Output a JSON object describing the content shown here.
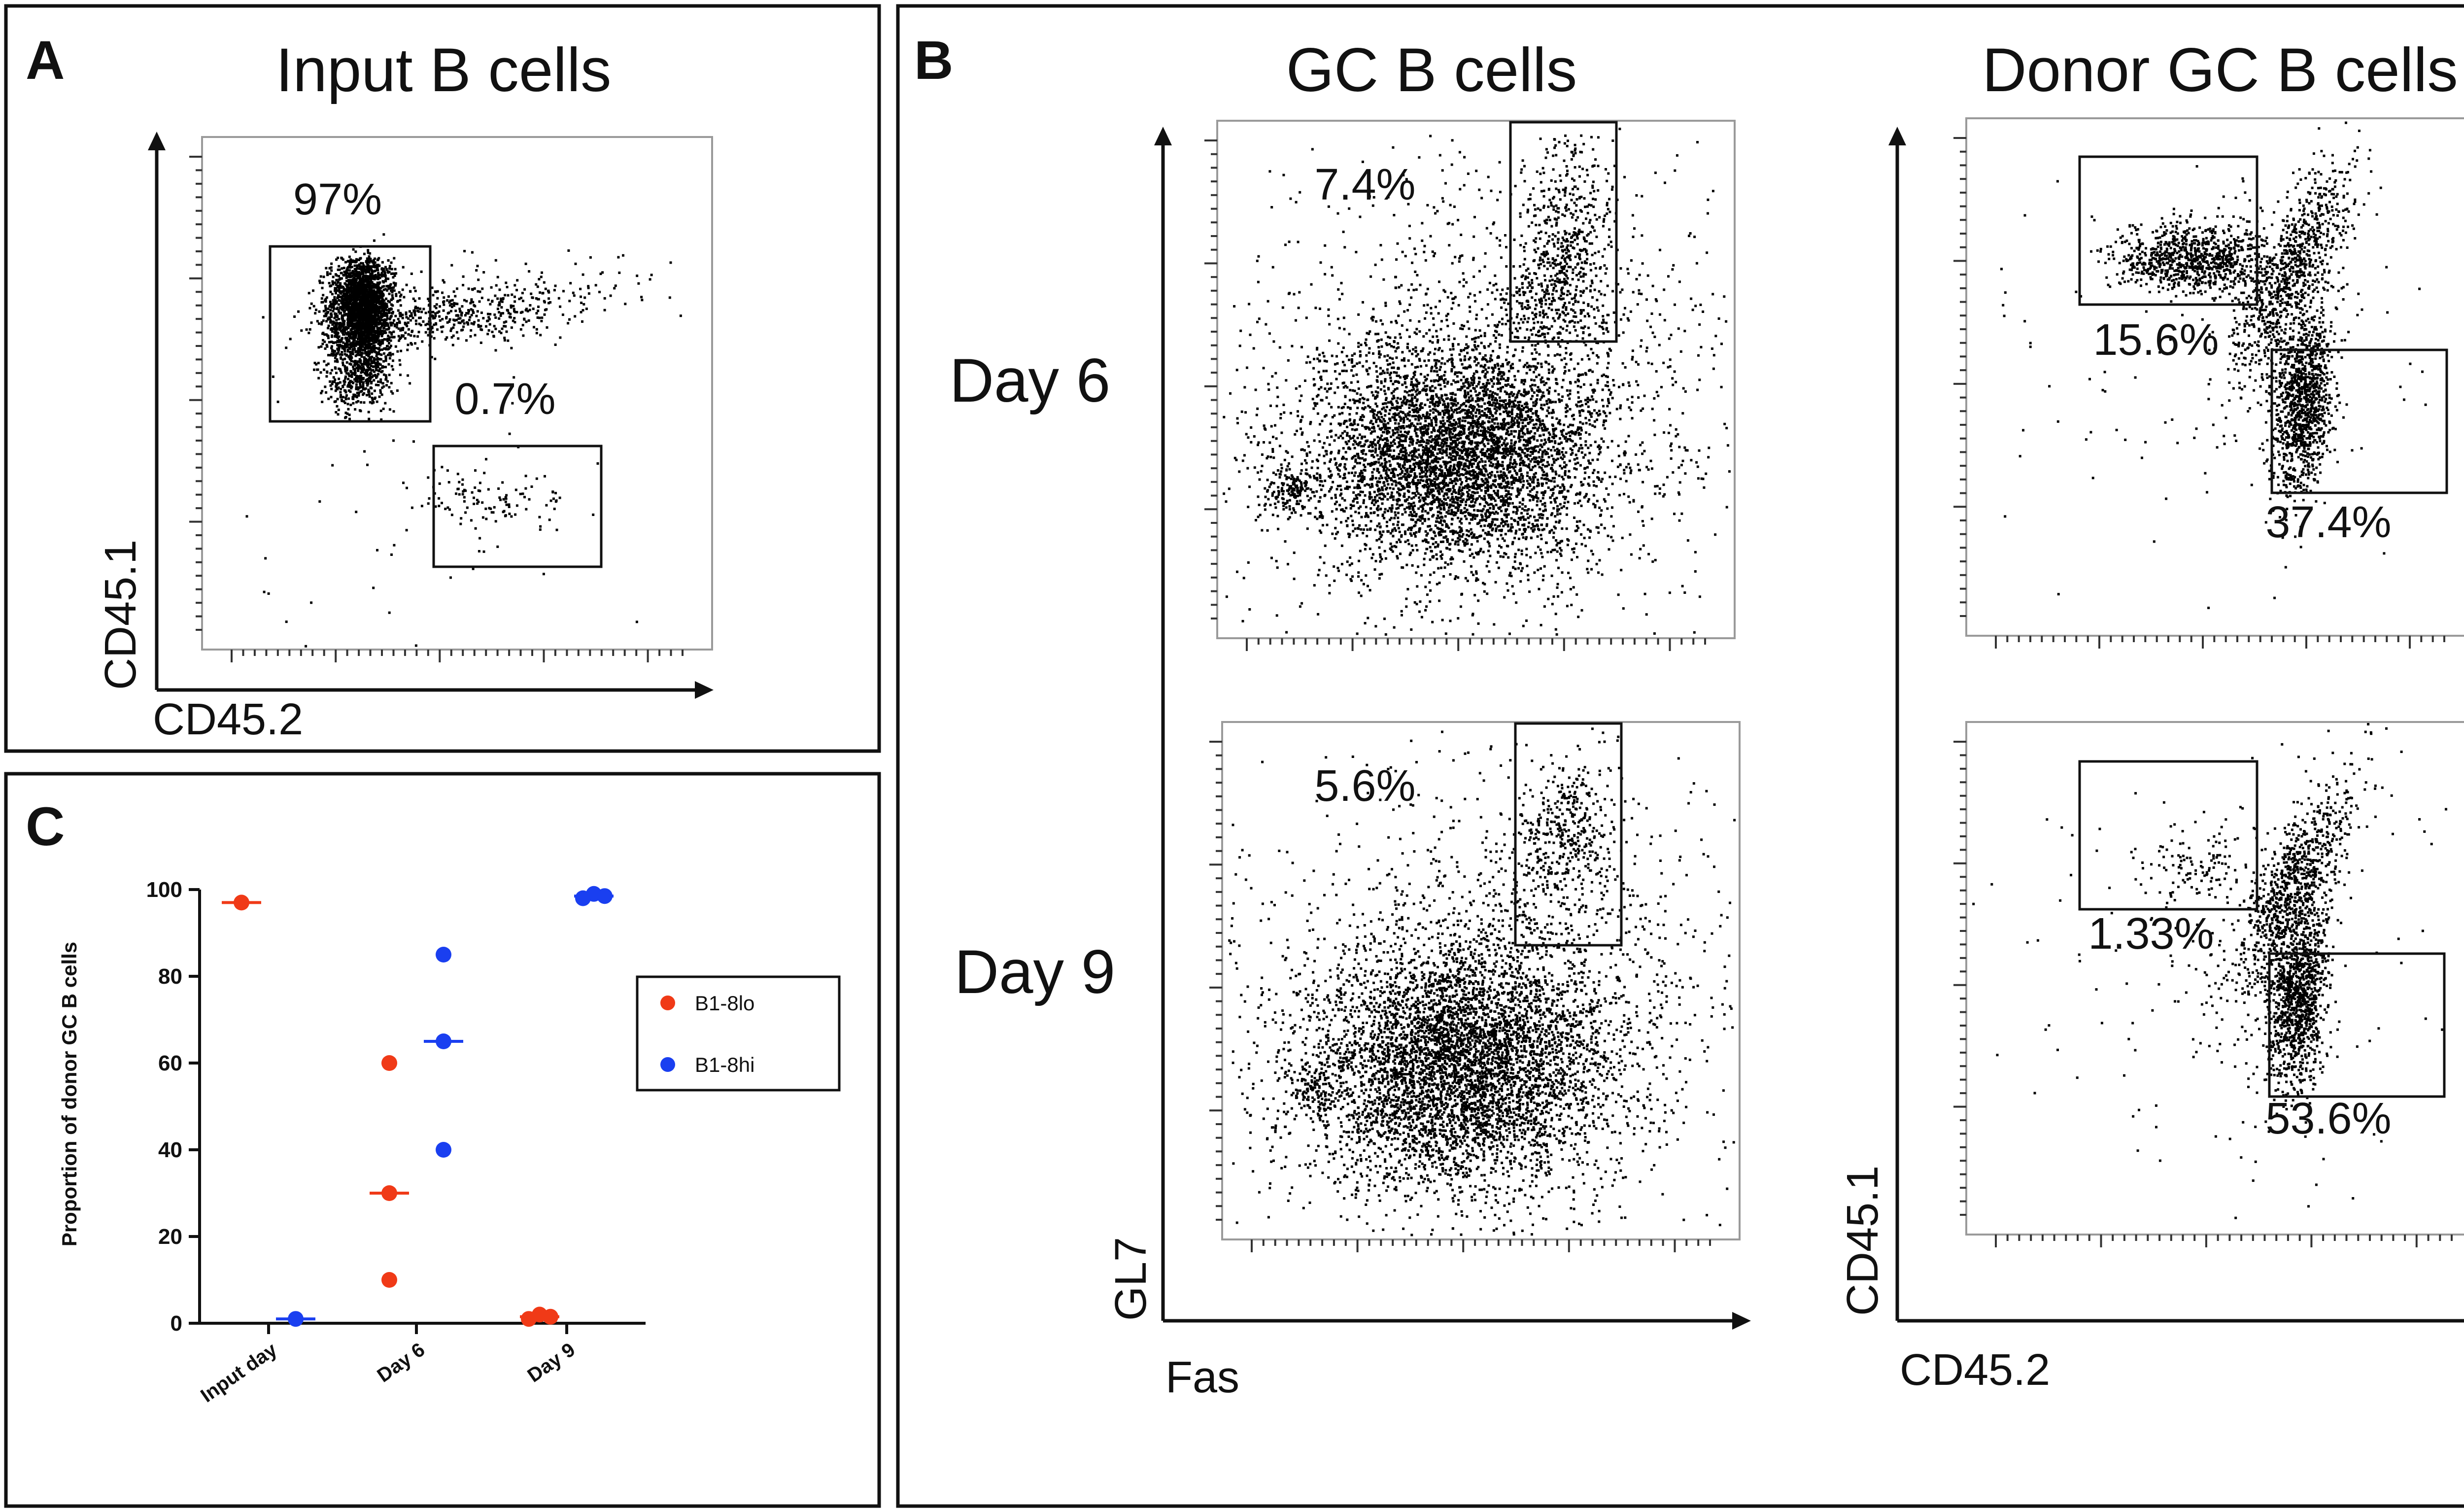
{
  "figure": {
    "panel_a": {
      "letter": "A",
      "title": "Input B cells",
      "xlabel": "CD45.2",
      "ylabel": "CD45.1",
      "gates": [
        {
          "label": "97%"
        },
        {
          "label": "0.7%"
        }
      ]
    },
    "panel_b": {
      "letter": "B",
      "col1_title": "GC B cells",
      "col2_title": "Donor GC B cells",
      "row_labels": [
        "Day 6",
        "Day 9"
      ],
      "gc_xlabel": "Fas",
      "gc_ylabel": "GL7",
      "donor_xlabel": "CD45.2",
      "donor_ylabel": "CD45.1",
      "gc_gate_labels": [
        "7.4%",
        "5.6%"
      ],
      "donor_gate_labels": [
        {
          "upper": "15.6%",
          "lower": "37.4%"
        },
        {
          "upper": "1.33%",
          "lower": "53.6%"
        }
      ]
    },
    "panel_c": {
      "letter": "C"
    }
  },
  "chart_data": [
    {
      "type": "scatter",
      "panel": "A",
      "title": "Input B cells",
      "xlabel": "CD45.2",
      "ylabel": "CD45.1",
      "annotations": [
        "97%",
        "0.7%"
      ]
    },
    {
      "type": "scatter",
      "panel": "B",
      "subplots": [
        {
          "title": "GC B cells",
          "row": "Day 6",
          "xlabel": "Fas",
          "ylabel": "GL7",
          "annotations": [
            "7.4%"
          ]
        },
        {
          "title": "GC B cells",
          "row": "Day 9",
          "xlabel": "Fas",
          "ylabel": "GL7",
          "annotations": [
            "5.6%"
          ]
        },
        {
          "title": "Donor GC B cells",
          "row": "Day 6",
          "xlabel": "CD45.2",
          "ylabel": "CD45.1",
          "annotations": [
            "15.6%",
            "37.4%"
          ]
        },
        {
          "title": "Donor GC B cells",
          "row": "Day 9",
          "xlabel": "CD45.2",
          "ylabel": "CD45.1",
          "annotations": [
            "1.33%",
            "53.6%"
          ]
        }
      ]
    },
    {
      "type": "scatter",
      "panel": "C",
      "ylabel": "Proportion of donor GC B cells",
      "xlabel": "",
      "categories": [
        "Input day",
        "Day 6",
        "Day 9"
      ],
      "ylim": [
        0,
        100
      ],
      "yticks": [
        0,
        20,
        40,
        60,
        80,
        100
      ],
      "legend_position": "right",
      "series": [
        {
          "name": "B1-8lo",
          "color": "#f03a17",
          "points": [
            [
              0,
              97
            ],
            [
              1,
              60
            ],
            [
              1,
              30
            ],
            [
              1,
              10
            ],
            [
              2,
              1
            ],
            [
              2,
              2
            ],
            [
              2,
              1.5
            ]
          ],
          "medians": [
            97,
            30,
            1.5
          ]
        },
        {
          "name": "B1-8hi",
          "color": "#1a3ff0",
          "points": [
            [
              0,
              1
            ],
            [
              1,
              85
            ],
            [
              1,
              65
            ],
            [
              1,
              40
            ],
            [
              2,
              98
            ],
            [
              2,
              99
            ],
            [
              2,
              98.5
            ]
          ],
          "medians": [
            1,
            65,
            98.5
          ]
        }
      ]
    }
  ]
}
